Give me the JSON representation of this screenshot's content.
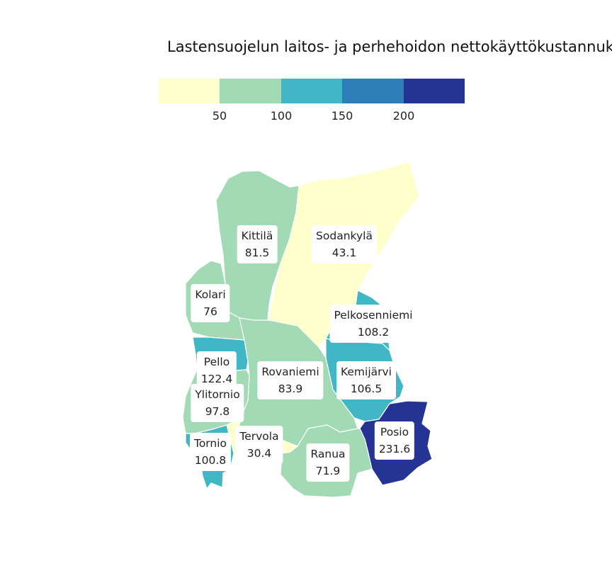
{
  "title": "Lastensuojelun laitos- ja perhehoidon nettokäyttökustannuk",
  "legend": {
    "colors": [
      "#ffffcc",
      "#a1dab4",
      "#41b6c4",
      "#2c7fb8",
      "#253494"
    ],
    "ticks": [
      "50",
      "100",
      "150",
      "200"
    ]
  },
  "regions": [
    {
      "name": "Kittilä",
      "value": "81.5",
      "color": "#a1dab4"
    },
    {
      "name": "Sodankylä",
      "value": "43.1",
      "color": "#ffffcc"
    },
    {
      "name": "Kolari",
      "value": "76",
      "color": "#a1dab4"
    },
    {
      "name": "Pelkosenniemi",
      "value": "108.2",
      "color": "#41b6c4"
    },
    {
      "name": "Pello",
      "value": "122.4",
      "color": "#41b6c4"
    },
    {
      "name": "Rovaniemi",
      "value": "83.9",
      "color": "#a1dab4"
    },
    {
      "name": "Kemijärvi",
      "value": "106.5",
      "color": "#41b6c4"
    },
    {
      "name": "Ylitornio",
      "value": "97.8",
      "color": "#a1dab4"
    },
    {
      "name": "Posio",
      "value": "231.6",
      "color": "#253494"
    },
    {
      "name": "Tervola",
      "value": "30.4",
      "color": "#ffffcc"
    },
    {
      "name": "Tornio",
      "value": "100.8",
      "color": "#41b6c4"
    },
    {
      "name": "Ranua",
      "value": "71.9",
      "color": "#a1dab4"
    }
  ]
}
